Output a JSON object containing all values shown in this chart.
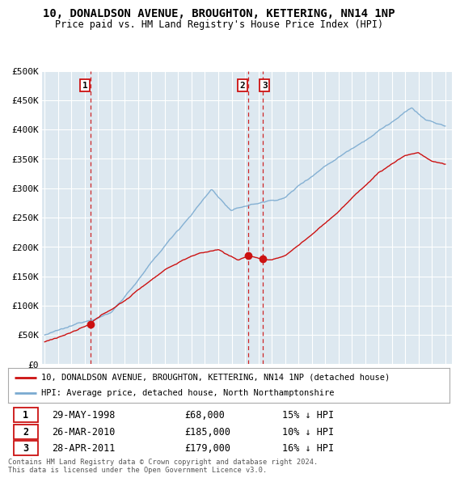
{
  "title": "10, DONALDSON AVENUE, BROUGHTON, KETTERING, NN14 1NP",
  "subtitle": "Price paid vs. HM Land Registry's House Price Index (HPI)",
  "ylabel_ticks": [
    "£0",
    "£50K",
    "£100K",
    "£150K",
    "£200K",
    "£250K",
    "£300K",
    "£350K",
    "£400K",
    "£450K",
    "£500K"
  ],
  "ytick_values": [
    0,
    50000,
    100000,
    150000,
    200000,
    250000,
    300000,
    350000,
    400000,
    450000,
    500000
  ],
  "xlim_start": 1994.8,
  "xlim_end": 2025.5,
  "ylim": [
    0,
    500000
  ],
  "transaction_dates": [
    1998.41,
    2010.23,
    2011.32
  ],
  "transaction_prices": [
    68000,
    185000,
    179000
  ],
  "transaction_labels": [
    "1",
    "2",
    "3"
  ],
  "transaction_date_strs": [
    "29-MAY-1998",
    "26-MAR-2010",
    "28-APR-2011"
  ],
  "transaction_price_strs": [
    "£68,000",
    "£185,000",
    "£179,000"
  ],
  "transaction_hpi_strs": [
    "15% ↓ HPI",
    "10% ↓ HPI",
    "16% ↓ HPI"
  ],
  "hpi_color": "#7aaad0",
  "price_color": "#cc1111",
  "dashed_line_color": "#cc1111",
  "background_color": "#ffffff",
  "plot_bg_color": "#dde8f0",
  "grid_color": "#ffffff",
  "legend_label_price": "10, DONALDSON AVENUE, BROUGHTON, KETTERING, NN14 1NP (detached house)",
  "legend_label_hpi": "HPI: Average price, detached house, North Northamptonshire",
  "footer": "Contains HM Land Registry data © Crown copyright and database right 2024.\nThis data is licensed under the Open Government Licence v3.0."
}
